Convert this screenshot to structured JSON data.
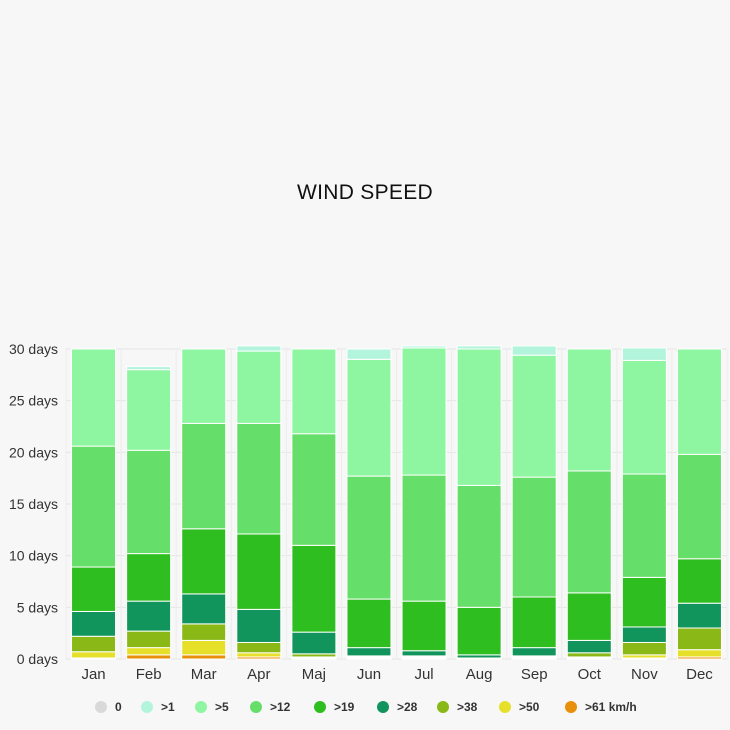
{
  "chart_data": {
    "type": "bar",
    "stacked": true,
    "title": "WIND SPEED",
    "y_tick_labels": [
      "0 days",
      "5 days",
      "10 days",
      "15 days",
      "20 days",
      "25 days",
      "30 days"
    ],
    "ylim": [
      0,
      30
    ],
    "grid": true,
    "legend_position": "bottom",
    "categories": [
      "Jan",
      "Feb",
      "Mar",
      "Apr",
      "Maj",
      "Jun",
      "Jul",
      "Aug",
      "Sep",
      "Oct",
      "Nov",
      "Dec"
    ],
    "series": [
      {
        "name": "0",
        "color": "#d9d9d9",
        "values": [
          0,
          0,
          0,
          0,
          0,
          0,
          0,
          0,
          0,
          0,
          0,
          0
        ]
      },
      {
        "name": ">1",
        "color": "#b3f5dc",
        "values": [
          0,
          0.3,
          0,
          0.5,
          0,
          1.0,
          0.2,
          0.3,
          0.9,
          0,
          1.2,
          0
        ]
      },
      {
        "name": ">5",
        "color": "#8ef5a0",
        "values": [
          9.4,
          7.8,
          7.2,
          7.0,
          8.2,
          11.3,
          12.3,
          13.2,
          11.8,
          11.8,
          11.0,
          10.2
        ]
      },
      {
        "name": ">12",
        "color": "#66de6a",
        "values": [
          11.7,
          10.0,
          10.2,
          10.7,
          10.8,
          11.9,
          12.2,
          11.8,
          11.6,
          11.8,
          10.0,
          10.1
        ]
      },
      {
        "name": ">19",
        "color": "#2fbe20",
        "values": [
          4.3,
          4.6,
          6.3,
          7.3,
          8.4,
          4.7,
          4.8,
          4.6,
          4.9,
          4.6,
          4.8,
          4.3
        ]
      },
      {
        "name": ">28",
        "color": "#12955c",
        "values": [
          2.4,
          2.9,
          2.9,
          3.2,
          2.1,
          0.8,
          0.5,
          0.3,
          0.8,
          1.2,
          1.5,
          2.4
        ]
      },
      {
        "name": ">38",
        "color": "#8ab817",
        "values": [
          1.5,
          1.6,
          1.6,
          1.0,
          0.3,
          0.1,
          0.1,
          0,
          0.1,
          0.4,
          1.2,
          2.1
        ]
      },
      {
        "name": ">50",
        "color": "#e6e02a",
        "values": [
          0.6,
          0.7,
          1.4,
          0.4,
          0.1,
          0.1,
          0.1,
          0,
          0.1,
          0.1,
          0.3,
          0.7
        ]
      },
      {
        "name": ">61 km/h",
        "color": "#e8900c",
        "values": [
          0.1,
          0.4,
          0.4,
          0.2,
          0.1,
          0.1,
          0.1,
          0.1,
          0.1,
          0.1,
          0.1,
          0.2
        ]
      }
    ]
  }
}
